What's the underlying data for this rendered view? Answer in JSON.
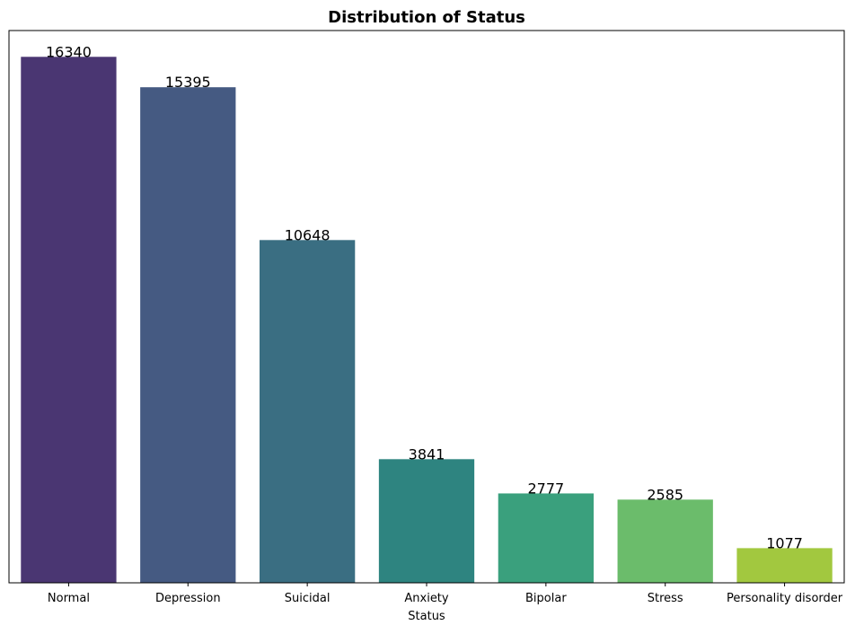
{
  "chart_data": {
    "type": "bar",
    "title": "Distribution of Status",
    "xlabel": "Status",
    "ylabel": "",
    "categories": [
      "Normal",
      "Depression",
      "Suicidal",
      "Anxiety",
      "Bipolar",
      "Stress",
      "Personality disorder"
    ],
    "values": [
      16340,
      15395,
      10648,
      3841,
      2777,
      2585,
      1077
    ],
    "data_labels": [
      "16340",
      "15395",
      "10648",
      "3841",
      "2777",
      "2585",
      "1077"
    ],
    "colors": [
      "#4a3672",
      "#455a82",
      "#3a6e82",
      "#2e8480",
      "#3aa07d",
      "#6bbc6b",
      "#a2c83f"
    ],
    "ylim": [
      0,
      17157
    ],
    "y_axis_visible": false,
    "grid": false,
    "legend": "none"
  }
}
